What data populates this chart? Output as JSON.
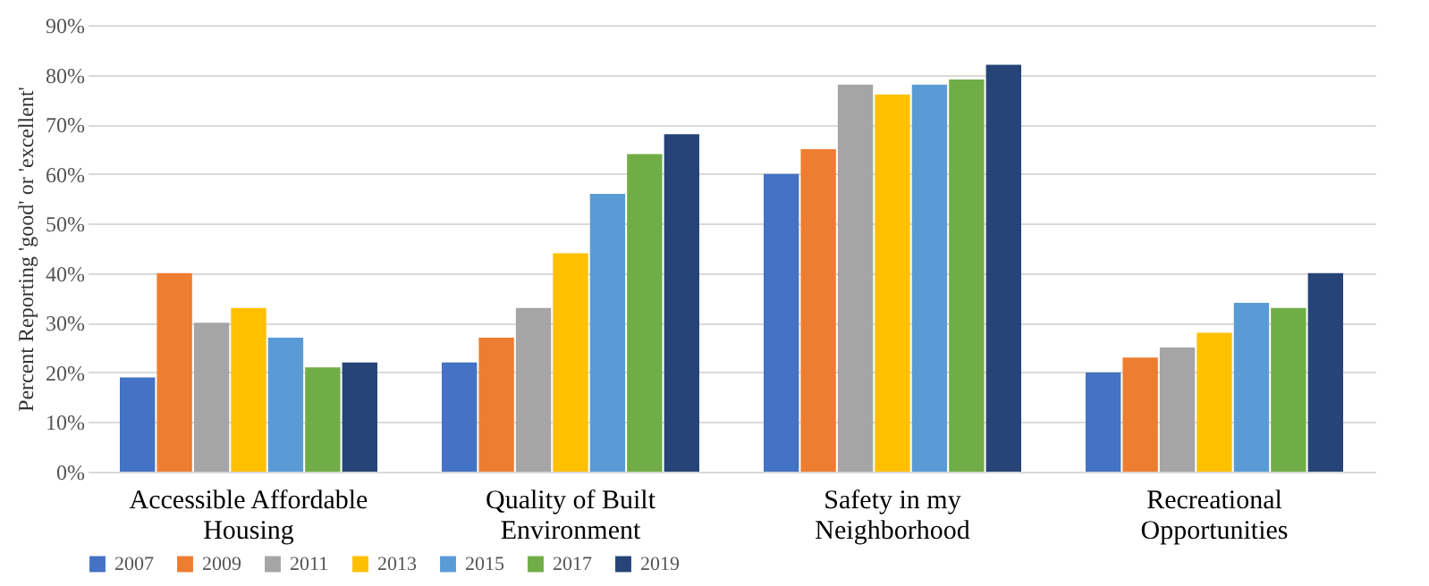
{
  "chart_data": {
    "type": "bar",
    "ylabel": "Percent Reporting 'good' or 'excellent'",
    "categories": [
      "Accessible Affordable\nHousing",
      "Quality of Built\nEnvironment",
      "Safety in my\nNeighborhood",
      "Recreational\nOpportunities"
    ],
    "series": [
      {
        "name": "2007",
        "color": "#4472c4",
        "values": [
          19,
          22,
          60,
          20
        ]
      },
      {
        "name": "2009",
        "color": "#ed7d31",
        "values": [
          40,
          27,
          65,
          23
        ]
      },
      {
        "name": "2011",
        "color": "#a5a5a5",
        "values": [
          30,
          33,
          78,
          25
        ]
      },
      {
        "name": "2013",
        "color": "#ffc000",
        "values": [
          33,
          44,
          76,
          28
        ]
      },
      {
        "name": "2015",
        "color": "#5b9bd5",
        "values": [
          27,
          56,
          78,
          34
        ]
      },
      {
        "name": "2017",
        "color": "#70ad47",
        "values": [
          21,
          64,
          79,
          33
        ]
      },
      {
        "name": "2019",
        "color": "#264478",
        "values": [
          22,
          68,
          82,
          40
        ]
      }
    ],
    "ylim": [
      0,
      90
    ],
    "yticks": [
      {
        "value": 0,
        "label": "0%"
      },
      {
        "value": 10,
        "label": "10%"
      },
      {
        "value": 20,
        "label": "20%"
      },
      {
        "value": 30,
        "label": "30%"
      },
      {
        "value": 40,
        "label": "40%"
      },
      {
        "value": 50,
        "label": "50%"
      },
      {
        "value": 60,
        "label": "60%"
      },
      {
        "value": 70,
        "label": "70%"
      },
      {
        "value": 80,
        "label": "80%"
      },
      {
        "value": 90,
        "label": "90%"
      }
    ],
    "grid": "y",
    "legend": "bottom"
  }
}
